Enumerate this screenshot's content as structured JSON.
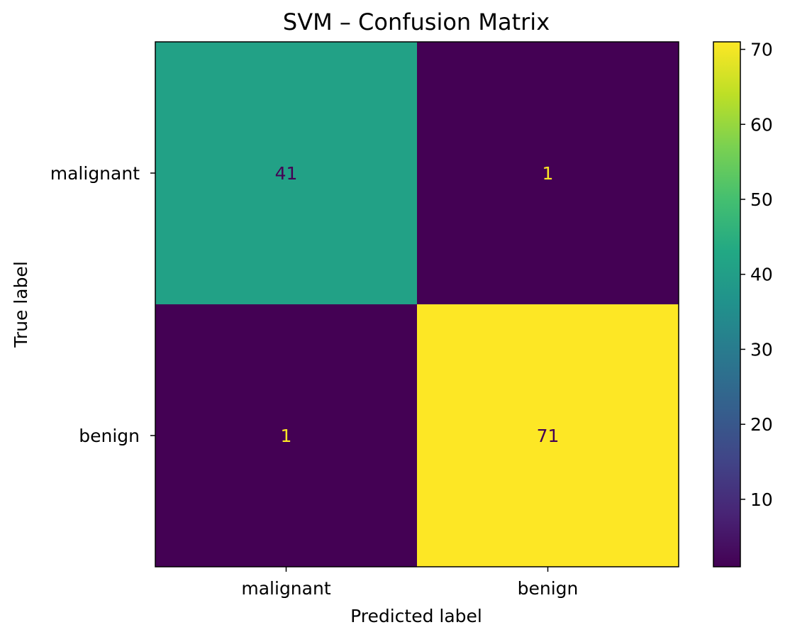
{
  "chart_data": {
    "type": "heatmap",
    "title": "SVM – Confusion Matrix",
    "xlabel": "Predicted label",
    "ylabel": "True label",
    "x_categories": [
      "malignant",
      "benign"
    ],
    "y_categories": [
      "malignant",
      "benign"
    ],
    "values": [
      [
        41,
        1
      ],
      [
        1,
        71
      ]
    ],
    "colormap": "viridis",
    "colorbar": {
      "range": [
        1,
        71
      ],
      "ticks": [
        10,
        20,
        30,
        40,
        50,
        60,
        70
      ]
    },
    "text_colors": {
      "on_light": "#440154",
      "on_dark": "#fde725"
    }
  }
}
